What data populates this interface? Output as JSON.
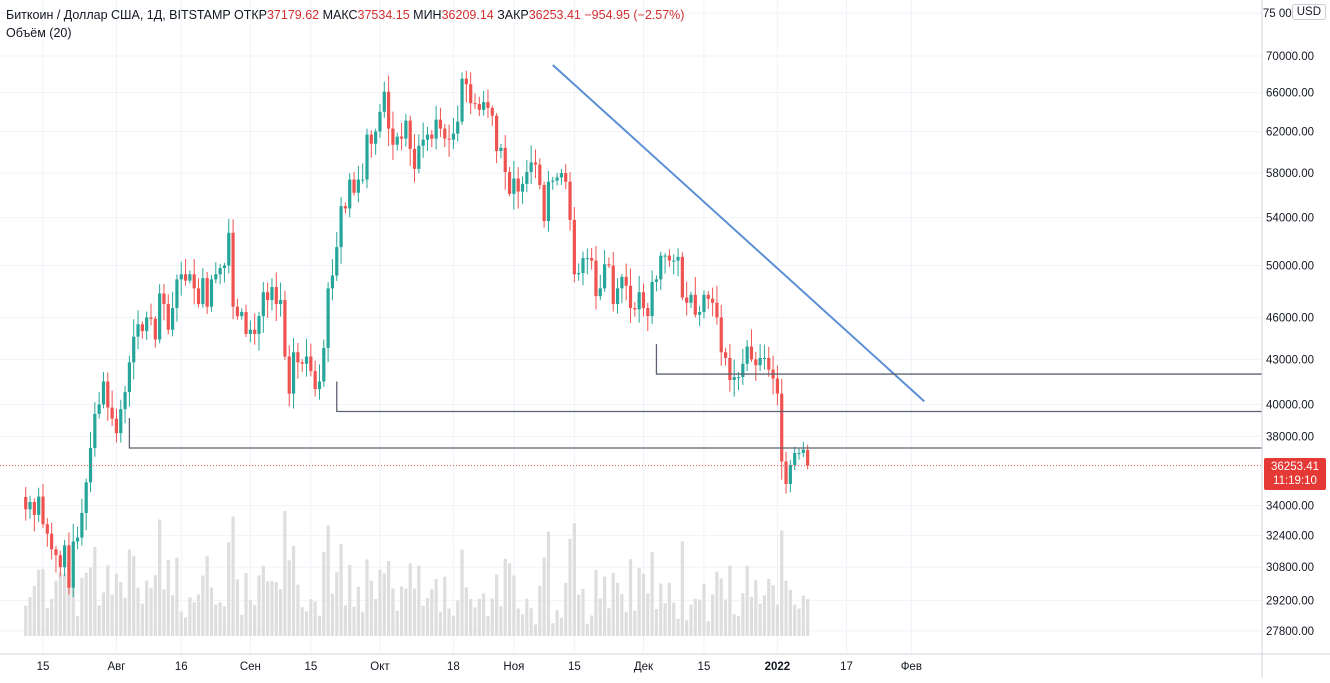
{
  "legend": {
    "symbol": "Биткоин / Доллар США, 1Д, BITSTAMP",
    "open_label": "ОТКР",
    "open_value": "37179.62",
    "high_label": "МАКС",
    "high_value": "37534.15",
    "low_label": "МИН",
    "low_value": "36209.14",
    "close_label": "ЗАКР",
    "close_value": "36253.41",
    "change": "−954.95 (−2.57%)",
    "volume_label": "Объём (20)"
  },
  "currency": "USD",
  "last_price": {
    "value": "36253.41",
    "countdown": "11:19:10"
  },
  "colors": {
    "up": "#26a69a",
    "down": "#ef5350",
    "trendline": "#5b8fd6",
    "level": "#5d6270",
    "volume": "#dedede",
    "grid": "#f0f3fa",
    "axis_text": "#131722"
  },
  "chart_data": {
    "type": "candlestick",
    "title": "Биткоин / Доллар США, 1Д, BITSTAMP",
    "ylim": [
      27000,
      75000
    ],
    "y_scale": "log",
    "grid": true,
    "y_ticks": [
      {
        "value": 75000,
        "label": "75 000.00"
      },
      {
        "value": 70000,
        "label": "70000.00"
      },
      {
        "value": 66000,
        "label": "66000.00"
      },
      {
        "value": 62000,
        "label": "62000.00"
      },
      {
        "value": 58000,
        "label": "58000.00"
      },
      {
        "value": 54000,
        "label": "54000.00"
      },
      {
        "value": 50000,
        "label": "50000.00"
      },
      {
        "value": 46000,
        "label": "46000.00"
      },
      {
        "value": 43000,
        "label": "43000.00"
      },
      {
        "value": 40000,
        "label": "40000.00"
      },
      {
        "value": 38000,
        "label": "38000.00"
      },
      {
        "value": 34000,
        "label": "34000.00"
      },
      {
        "value": 32400,
        "label": "32400.00"
      },
      {
        "value": 30800,
        "label": "30800.00"
      },
      {
        "value": 29200,
        "label": "29200.00"
      },
      {
        "value": 27800,
        "label": "27800.00"
      }
    ],
    "x_ticks": [
      {
        "date": "2021-07-15",
        "label": "15"
      },
      {
        "date": "2021-08-01",
        "label": "Авг"
      },
      {
        "date": "2021-08-16",
        "label": "16"
      },
      {
        "date": "2021-09-01",
        "label": "Сен"
      },
      {
        "date": "2021-09-15",
        "label": "15"
      },
      {
        "date": "2021-10-01",
        "label": "Окт"
      },
      {
        "date": "2021-10-18",
        "label": "18"
      },
      {
        "date": "2021-11-01",
        "label": "Ноя"
      },
      {
        "date": "2021-11-15",
        "label": "15"
      },
      {
        "date": "2021-12-01",
        "label": "Дек"
      },
      {
        "date": "2021-12-15",
        "label": "15"
      },
      {
        "date": "2022-01-01",
        "label": "2022"
      },
      {
        "date": "2022-01-17",
        "label": "17"
      },
      {
        "date": "2022-02-01",
        "label": "Фев"
      }
    ],
    "first_date": "2021-07-11",
    "closes": [
      33800,
      34200,
      33500,
      34500,
      33000,
      32500,
      31700,
      31400,
      30800,
      31900,
      29800,
      32100,
      32300,
      33600,
      35300,
      37300,
      39400,
      40000,
      41500,
      39800,
      39100,
      38200,
      39700,
      40800,
      42800,
      44600,
      45500,
      45000,
      46000,
      45900,
      44400,
      47800,
      47000,
      45100,
      46700,
      48900,
      49300,
      48800,
      49300,
      48200,
      47000,
      49000,
      46800,
      48900,
      49300,
      49800,
      50000,
      52700,
      46800,
      46100,
      46400,
      44800,
      45100,
      44800,
      46100,
      47900,
      47300,
      48300,
      47000,
      47300,
      43200,
      40700,
      43500,
      42800,
      42700,
      43200,
      42200,
      41000,
      41500,
      43800,
      48200,
      49200,
      51500,
      55000,
      54800,
      57400,
      56200,
      57400,
      57400,
      61700,
      60800,
      62000,
      64000,
      66100,
      62300,
      60700,
      61500,
      61300,
      63100,
      60300,
      58400,
      60600,
      61200,
      61700,
      61300,
      63200,
      62300,
      61300,
      61200,
      61800,
      63000,
      67500,
      66900,
      64900,
      64800,
      64200,
      65000,
      64400,
      63600,
      60100,
      60400,
      58100,
      56100,
      57500,
      56300,
      57000,
      58100,
      59000,
      58800,
      56900,
      53700,
      57200,
      57300,
      57600,
      58000,
      57200,
      53800,
      49300,
      49400,
      50600,
      50600,
      50400,
      47600,
      48200,
      50100,
      50000,
      47000,
      48200,
      49100,
      48400,
      46700,
      46600,
      47900,
      46700,
      46100,
      48700,
      48900,
      50800,
      50800,
      50400,
      50400,
      50700,
      47500,
      47100,
      47700,
      46200,
      46400,
      47700,
      47400,
      47100,
      46000,
      43500,
      43100,
      41600,
      41800,
      41800,
      42700,
      43900,
      43000,
      42600,
      43100,
      43100,
      42300,
      41700,
      40700,
      36500,
      35200,
      36300,
      37000,
      37000,
      37200,
      36253
    ],
    "annotations": [
      {
        "type": "trendline",
        "from": {
          "date": "2021-11-10",
          "value": 69000
        },
        "to": {
          "date": "2022-02-04",
          "value": 40200
        }
      },
      {
        "type": "horizontal",
        "start": "2021-08-04",
        "value": 37300
      },
      {
        "type": "horizontal",
        "start": "2021-09-21",
        "value": 39550
      },
      {
        "type": "horizontal",
        "start": "2021-12-04",
        "value": 42000
      },
      {
        "type": "price_line",
        "value": 36253.41
      }
    ]
  }
}
